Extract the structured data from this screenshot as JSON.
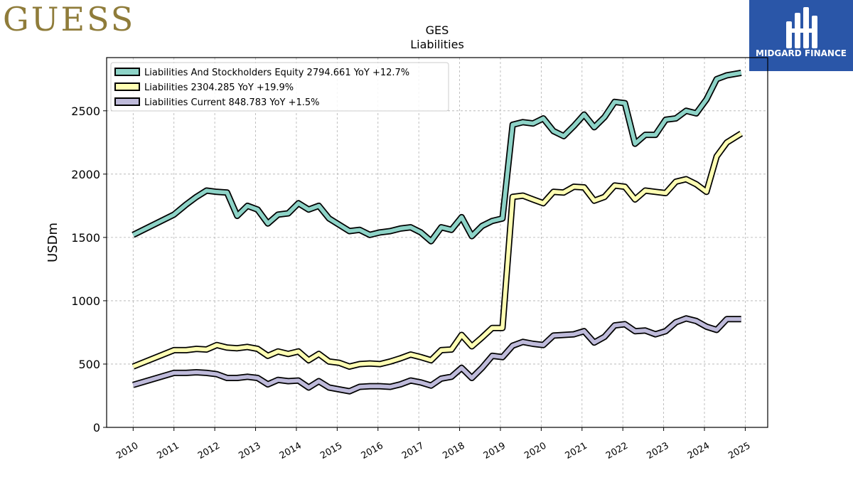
{
  "logos": {
    "left_text": "GUESS",
    "right_text": "MIDGARD FINANCE",
    "right_bg": "#2a56a8",
    "left_color": "#8f7c3a"
  },
  "chart_data": {
    "type": "line",
    "title": "GES",
    "subtitle": "Liabilities",
    "ylabel": "USDm",
    "xlabel": "",
    "xlim": [
      2009.35,
      2025.55
    ],
    "ylim": [
      0,
      2920
    ],
    "y_ticks": [
      0,
      500,
      1000,
      1500,
      2000,
      2500
    ],
    "x_ticks": [
      2010,
      2011,
      2012,
      2013,
      2014,
      2015,
      2016,
      2017,
      2018,
      2019,
      2020,
      2021,
      2022,
      2023,
      2024,
      2025
    ],
    "grid": true,
    "legend_position": "top-left",
    "series": [
      {
        "name": "Liabilities And Stockholders Equity",
        "legend_label": "Liabilities And Stockholders Equity  2794.661 YoY +12.7%",
        "color": "#8dd3c7",
        "points": [
          [
            2010.0,
            1520
          ],
          [
            2011.0,
            1680
          ],
          [
            2011.3,
            1760
          ],
          [
            2011.55,
            1820
          ],
          [
            2011.8,
            1870
          ],
          [
            2012.05,
            1860
          ],
          [
            2012.3,
            1855
          ],
          [
            2012.55,
            1670
          ],
          [
            2012.8,
            1750
          ],
          [
            2013.05,
            1720
          ],
          [
            2013.3,
            1610
          ],
          [
            2013.55,
            1680
          ],
          [
            2013.8,
            1690
          ],
          [
            2014.05,
            1770
          ],
          [
            2014.3,
            1720
          ],
          [
            2014.55,
            1750
          ],
          [
            2014.8,
            1650
          ],
          [
            2015.05,
            1600
          ],
          [
            2015.3,
            1550
          ],
          [
            2015.55,
            1560
          ],
          [
            2015.8,
            1520
          ],
          [
            2016.05,
            1540
          ],
          [
            2016.3,
            1550
          ],
          [
            2016.55,
            1570
          ],
          [
            2016.8,
            1580
          ],
          [
            2017.05,
            1540
          ],
          [
            2017.3,
            1470
          ],
          [
            2017.55,
            1580
          ],
          [
            2017.8,
            1560
          ],
          [
            2018.05,
            1660
          ],
          [
            2018.3,
            1510
          ],
          [
            2018.55,
            1590
          ],
          [
            2018.8,
            1630
          ],
          [
            2019.05,
            1650
          ],
          [
            2019.3,
            2390
          ],
          [
            2019.55,
            2410
          ],
          [
            2019.8,
            2400
          ],
          [
            2020.05,
            2440
          ],
          [
            2020.3,
            2340
          ],
          [
            2020.55,
            2300
          ],
          [
            2020.8,
            2380
          ],
          [
            2021.05,
            2470
          ],
          [
            2021.3,
            2370
          ],
          [
            2021.55,
            2450
          ],
          [
            2021.8,
            2570
          ],
          [
            2022.05,
            2560
          ],
          [
            2022.3,
            2240
          ],
          [
            2022.55,
            2310
          ],
          [
            2022.8,
            2310
          ],
          [
            2023.05,
            2430
          ],
          [
            2023.3,
            2440
          ],
          [
            2023.55,
            2500
          ],
          [
            2023.8,
            2480
          ],
          [
            2024.05,
            2590
          ],
          [
            2024.3,
            2750
          ],
          [
            2024.55,
            2780
          ],
          [
            2024.9,
            2800
          ]
        ]
      },
      {
        "name": "Liabilities",
        "legend_label": "Liabilities  2304.285 YoY +19.9%",
        "color": "#ffffb3",
        "points": [
          [
            2010.0,
            480
          ],
          [
            2011.0,
            610
          ],
          [
            2011.3,
            610
          ],
          [
            2011.55,
            620
          ],
          [
            2011.8,
            615
          ],
          [
            2012.05,
            650
          ],
          [
            2012.3,
            630
          ],
          [
            2012.55,
            625
          ],
          [
            2012.8,
            635
          ],
          [
            2013.05,
            620
          ],
          [
            2013.3,
            565
          ],
          [
            2013.55,
            600
          ],
          [
            2013.8,
            580
          ],
          [
            2014.05,
            600
          ],
          [
            2014.3,
            530
          ],
          [
            2014.55,
            580
          ],
          [
            2014.8,
            520
          ],
          [
            2015.05,
            510
          ],
          [
            2015.3,
            480
          ],
          [
            2015.55,
            500
          ],
          [
            2015.8,
            505
          ],
          [
            2016.05,
            500
          ],
          [
            2016.3,
            520
          ],
          [
            2016.55,
            545
          ],
          [
            2016.8,
            575
          ],
          [
            2017.05,
            555
          ],
          [
            2017.3,
            530
          ],
          [
            2017.55,
            610
          ],
          [
            2017.8,
            615
          ],
          [
            2018.05,
            730
          ],
          [
            2018.3,
            640
          ],
          [
            2018.55,
            710
          ],
          [
            2018.8,
            785
          ],
          [
            2019.05,
            785
          ],
          [
            2019.3,
            1820
          ],
          [
            2019.55,
            1830
          ],
          [
            2019.8,
            1800
          ],
          [
            2020.05,
            1770
          ],
          [
            2020.3,
            1860
          ],
          [
            2020.55,
            1855
          ],
          [
            2020.8,
            1900
          ],
          [
            2021.05,
            1895
          ],
          [
            2021.3,
            1790
          ],
          [
            2021.55,
            1820
          ],
          [
            2021.8,
            1910
          ],
          [
            2022.05,
            1900
          ],
          [
            2022.3,
            1800
          ],
          [
            2022.55,
            1870
          ],
          [
            2022.8,
            1860
          ],
          [
            2023.05,
            1850
          ],
          [
            2023.3,
            1940
          ],
          [
            2023.55,
            1960
          ],
          [
            2023.8,
            1920
          ],
          [
            2024.05,
            1860
          ],
          [
            2024.3,
            2140
          ],
          [
            2024.55,
            2250
          ],
          [
            2024.9,
            2320
          ]
        ]
      },
      {
        "name": "Liabilities Current",
        "legend_label": "Liabilities Current  848.783 YoY +1.5%",
        "color": "#bebada",
        "points": [
          [
            2010.0,
            335
          ],
          [
            2011.0,
            430
          ],
          [
            2011.3,
            430
          ],
          [
            2011.55,
            435
          ],
          [
            2011.8,
            430
          ],
          [
            2012.05,
            420
          ],
          [
            2012.3,
            390
          ],
          [
            2012.55,
            390
          ],
          [
            2012.8,
            400
          ],
          [
            2013.05,
            390
          ],
          [
            2013.3,
            340
          ],
          [
            2013.55,
            375
          ],
          [
            2013.8,
            365
          ],
          [
            2014.05,
            370
          ],
          [
            2014.3,
            315
          ],
          [
            2014.55,
            365
          ],
          [
            2014.8,
            315
          ],
          [
            2015.05,
            300
          ],
          [
            2015.3,
            285
          ],
          [
            2015.55,
            320
          ],
          [
            2015.8,
            325
          ],
          [
            2016.05,
            325
          ],
          [
            2016.3,
            320
          ],
          [
            2016.55,
            340
          ],
          [
            2016.8,
            370
          ],
          [
            2017.05,
            355
          ],
          [
            2017.3,
            330
          ],
          [
            2017.55,
            385
          ],
          [
            2017.8,
            400
          ],
          [
            2018.05,
            470
          ],
          [
            2018.3,
            390
          ],
          [
            2018.55,
            470
          ],
          [
            2018.8,
            565
          ],
          [
            2019.05,
            555
          ],
          [
            2019.3,
            645
          ],
          [
            2019.55,
            675
          ],
          [
            2019.8,
            660
          ],
          [
            2020.05,
            650
          ],
          [
            2020.3,
            725
          ],
          [
            2020.55,
            730
          ],
          [
            2020.8,
            735
          ],
          [
            2021.05,
            760
          ],
          [
            2021.3,
            670
          ],
          [
            2021.55,
            715
          ],
          [
            2021.8,
            805
          ],
          [
            2022.05,
            815
          ],
          [
            2022.3,
            760
          ],
          [
            2022.55,
            765
          ],
          [
            2022.8,
            735
          ],
          [
            2023.05,
            760
          ],
          [
            2023.3,
            830
          ],
          [
            2023.55,
            860
          ],
          [
            2023.8,
            840
          ],
          [
            2024.05,
            795
          ],
          [
            2024.3,
            770
          ],
          [
            2024.55,
            855
          ],
          [
            2024.9,
            855
          ]
        ]
      }
    ]
  }
}
